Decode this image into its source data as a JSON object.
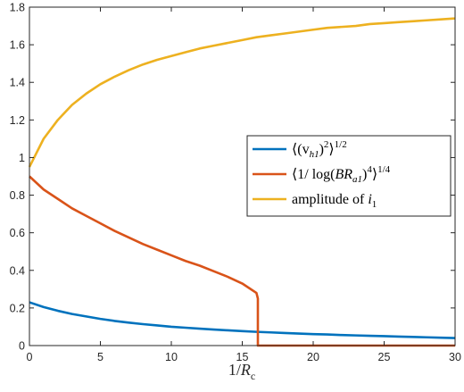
{
  "chart_data": {
    "type": "line",
    "xlabel": "1/R_c",
    "xlim": [
      0,
      30
    ],
    "ylim": [
      0,
      1.8
    ],
    "x_ticks": [
      0,
      5,
      10,
      15,
      20,
      25,
      30
    ],
    "y_ticks": [
      0,
      0.2,
      0.4,
      0.6,
      0.8,
      1,
      1.2,
      1.4,
      1.6,
      1.8
    ],
    "x_tick_labels": [
      "0",
      "5",
      "10",
      "15",
      "20",
      "25",
      "30"
    ],
    "y_tick_labels": [
      "0",
      "0.2",
      "0.4",
      "0.6",
      "0.8",
      "1",
      "1.2",
      "1.4",
      "1.6",
      "1.8"
    ],
    "grid": false,
    "legend_position": "right",
    "series": [
      {
        "name": "⟨(v_h1)²⟩^{1/2}",
        "color": "#0072BD",
        "x": [
          0,
          1,
          2,
          3,
          4,
          5,
          6,
          7,
          8,
          9,
          10,
          11,
          12,
          13,
          14,
          15,
          16,
          17,
          18,
          19,
          20,
          21,
          22,
          23,
          24,
          25,
          26,
          27,
          28,
          29,
          30
        ],
        "y": [
          0.23,
          0.205,
          0.185,
          0.168,
          0.155,
          0.142,
          0.131,
          0.122,
          0.114,
          0.107,
          0.1,
          0.095,
          0.09,
          0.085,
          0.081,
          0.077,
          0.073,
          0.07,
          0.067,
          0.064,
          0.061,
          0.059,
          0.056,
          0.054,
          0.052,
          0.05,
          0.048,
          0.046,
          0.044,
          0.042,
          0.04
        ]
      },
      {
        "name": "⟨1/log(BR_a1)⁴⟩^{1/4}",
        "color": "#D95319",
        "x": [
          0,
          1,
          2,
          3,
          4,
          5,
          6,
          7,
          8,
          9,
          10,
          11,
          12,
          13,
          14,
          15,
          16,
          16.1,
          16.1,
          17,
          18,
          19,
          20,
          21,
          22,
          23,
          24,
          25,
          26,
          27,
          28,
          29,
          30
        ],
        "y": [
          0.9,
          0.83,
          0.78,
          0.73,
          0.69,
          0.65,
          0.61,
          0.575,
          0.54,
          0.51,
          0.48,
          0.45,
          0.425,
          0.395,
          0.365,
          0.33,
          0.28,
          0.25,
          0,
          0,
          0,
          0,
          0,
          0,
          0,
          0,
          0,
          0,
          0,
          0,
          0,
          0,
          0
        ]
      },
      {
        "name": "amplitude of i_1",
        "color": "#EDB120",
        "x": [
          0,
          1,
          2,
          3,
          4,
          5,
          6,
          7,
          8,
          9,
          10,
          11,
          12,
          13,
          14,
          15,
          16,
          17,
          18,
          19,
          20,
          21,
          22,
          23,
          24,
          25,
          26,
          27,
          28,
          29,
          30
        ],
        "y": [
          0.95,
          1.1,
          1.2,
          1.28,
          1.34,
          1.39,
          1.43,
          1.465,
          1.495,
          1.52,
          1.54,
          1.56,
          1.58,
          1.595,
          1.61,
          1.625,
          1.64,
          1.65,
          1.66,
          1.67,
          1.68,
          1.69,
          1.695,
          1.7,
          1.71,
          1.715,
          1.72,
          1.725,
          1.73,
          1.735,
          1.74
        ]
      }
    ],
    "legend": {
      "entries": [
        {
          "main": "⟨(v",
          "sub": "h1",
          "after": ")",
          "sup": "2",
          "after2": "⟩",
          "sup2": "1/2"
        },
        {
          "main": "⟨1/ log(",
          "italic": "BR",
          "sub": "a1",
          "after": ")",
          "sup": "4",
          "after2": "⟩",
          "sup2": "1/4"
        },
        {
          "main": "amplitude of ",
          "italic": "i",
          "sub": "1"
        }
      ]
    },
    "xlabel_parts": {
      "main": "1/",
      "italic": "R",
      "sub": "c"
    }
  }
}
